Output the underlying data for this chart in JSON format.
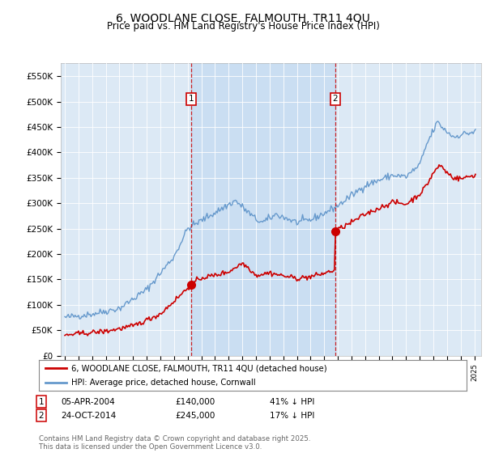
{
  "title": "6, WOODLANE CLOSE, FALMOUTH, TR11 4QU",
  "subtitle": "Price paid vs. HM Land Registry's House Price Index (HPI)",
  "ylim": [
    0,
    575000
  ],
  "yticks": [
    0,
    50000,
    100000,
    150000,
    200000,
    250000,
    300000,
    350000,
    400000,
    450000,
    500000,
    550000
  ],
  "ytick_labels": [
    "£0",
    "£50K",
    "£100K",
    "£150K",
    "£200K",
    "£250K",
    "£300K",
    "£350K",
    "£400K",
    "£450K",
    "£500K",
    "£550K"
  ],
  "bg_color": "#dce9f5",
  "red_color": "#cc0000",
  "blue_color": "#6699cc",
  "shade_color": "#ccddf0",
  "sale1_year": 2004.25,
  "sale1_price": 140000,
  "sale2_year": 2014.8,
  "sale2_price": 245000,
  "legend_line1": "6, WOODLANE CLOSE, FALMOUTH, TR11 4QU (detached house)",
  "legend_line2": "HPI: Average price, detached house, Cornwall",
  "footer": "Contains HM Land Registry data © Crown copyright and database right 2025.\nThis data is licensed under the Open Government Licence v3.0.",
  "title_fontsize": 10,
  "subtitle_fontsize": 8.5,
  "tick_fontsize": 7.5,
  "xmin": 1994.7,
  "xmax": 2025.5
}
